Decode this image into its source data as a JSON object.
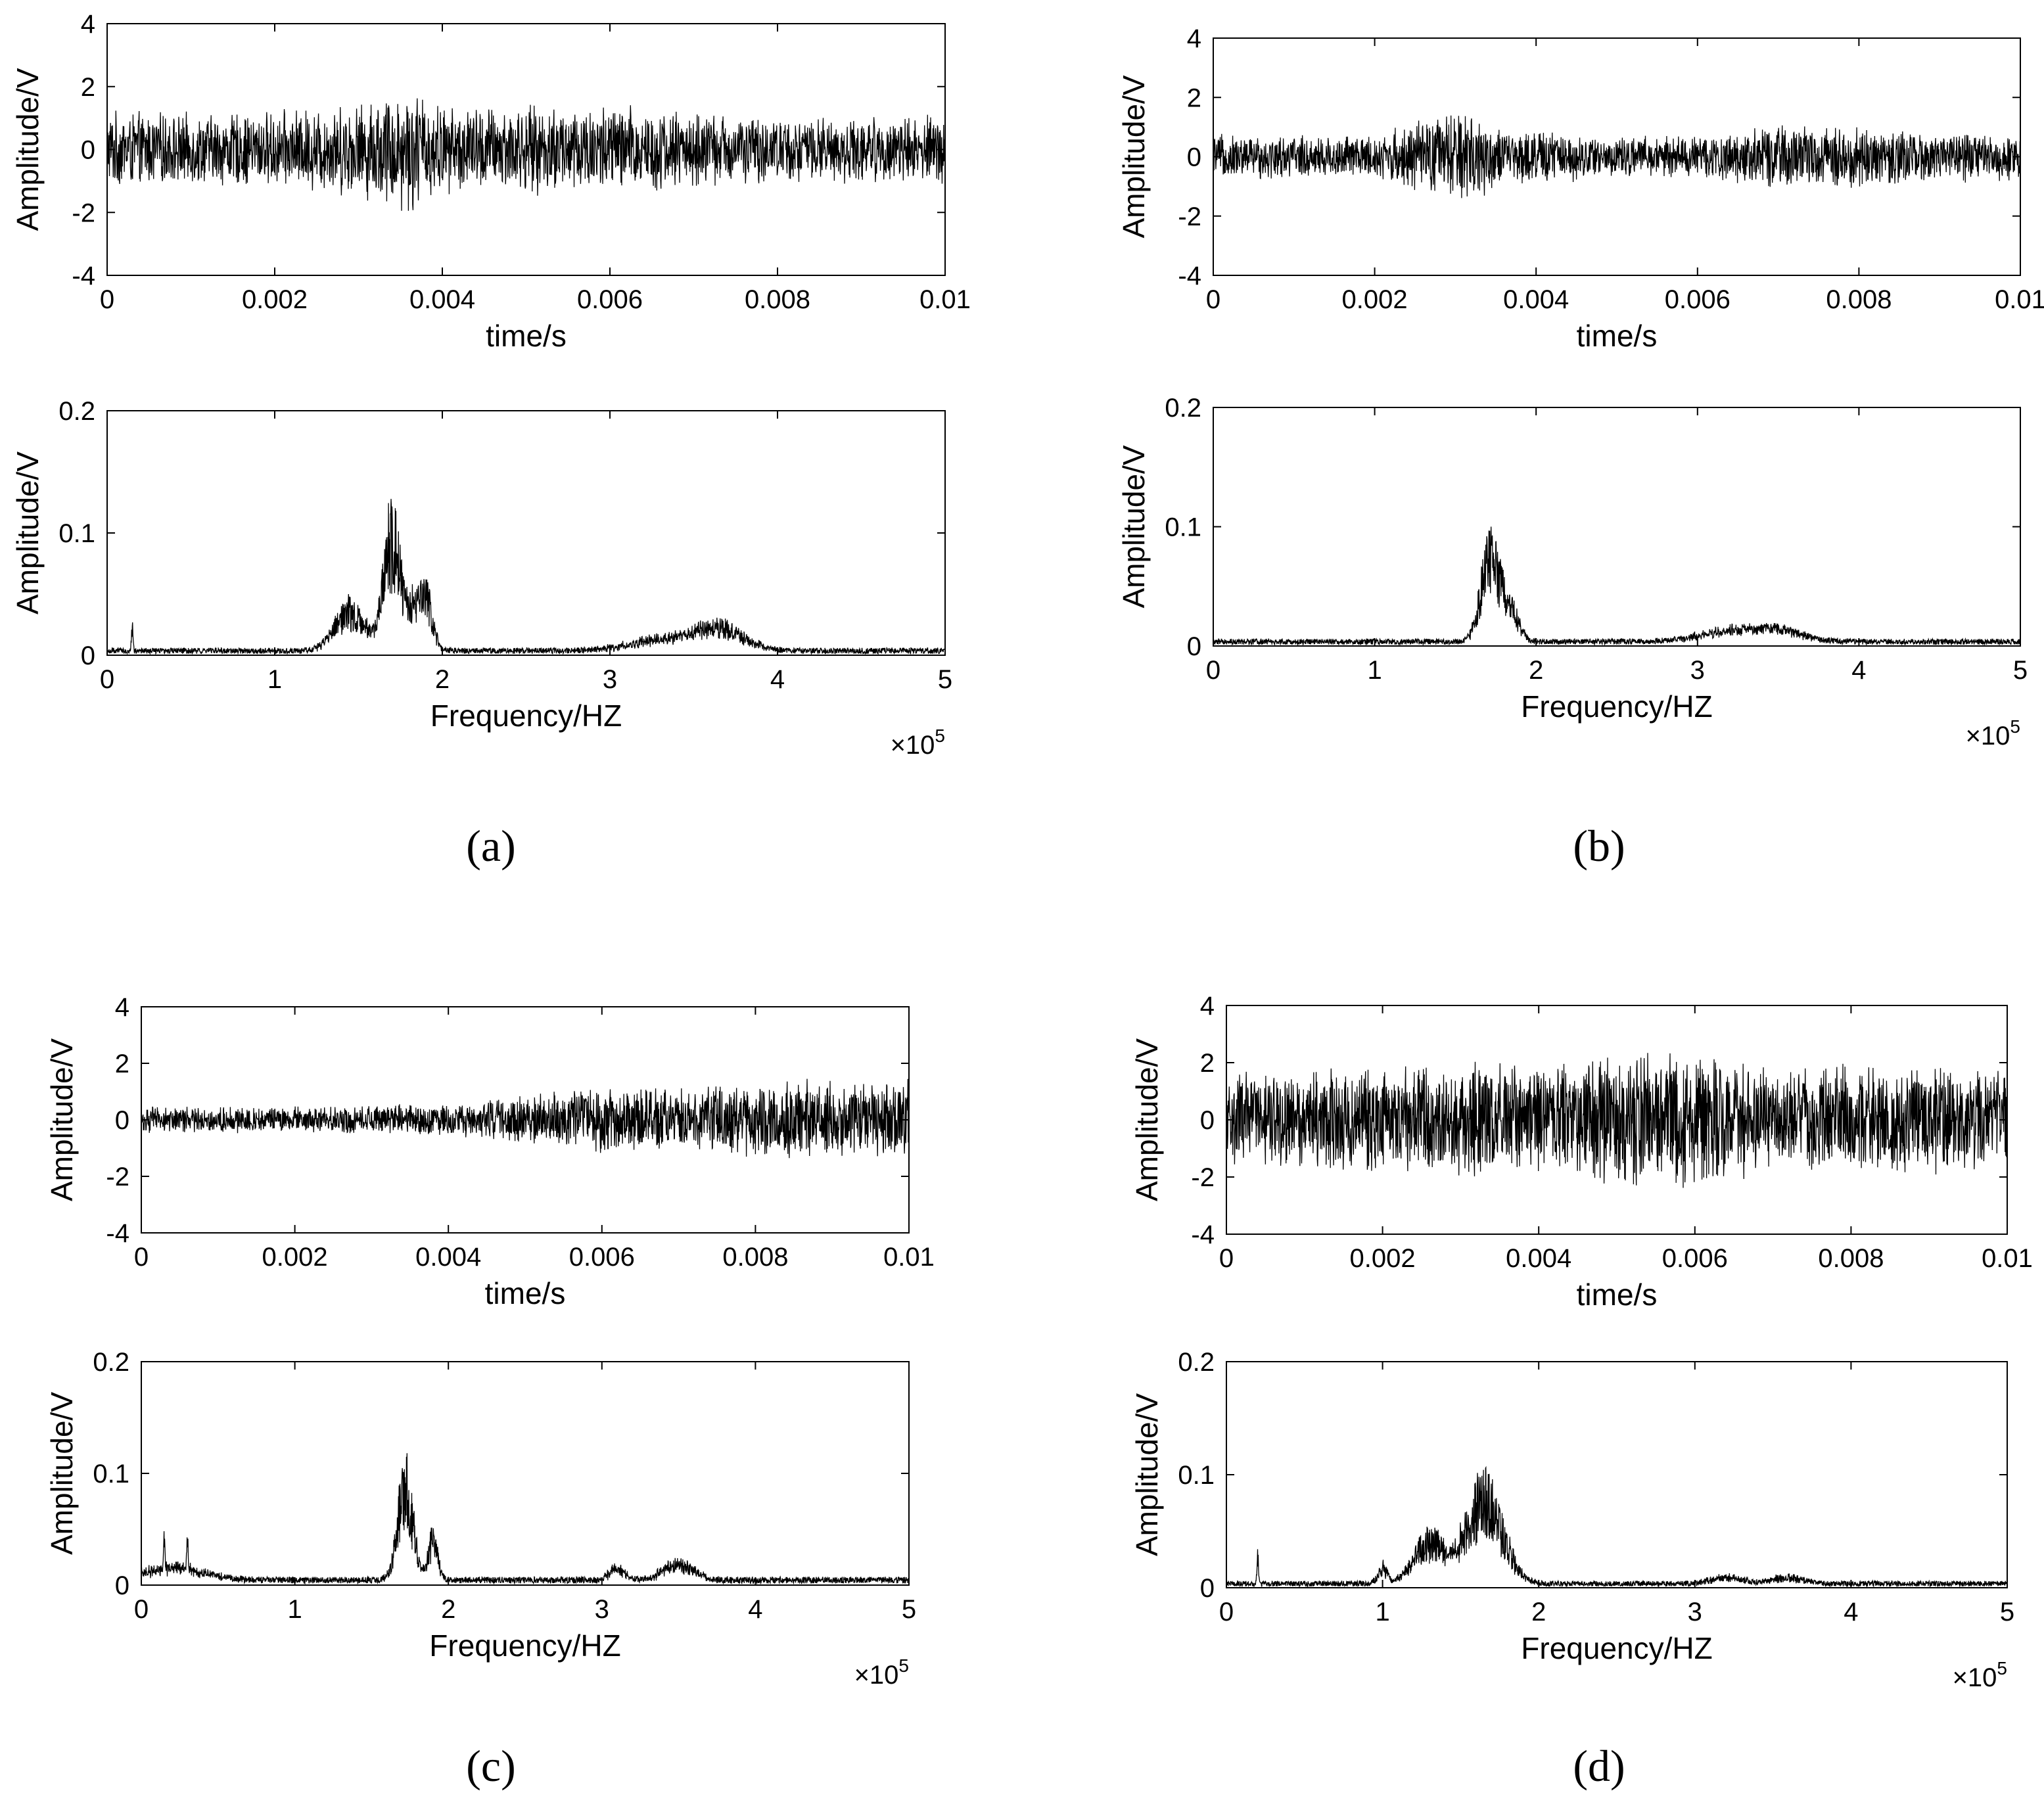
{
  "panel_labels": [
    "(a)",
    "(b)",
    "(c)",
    "(d)"
  ],
  "chart_data": [
    {
      "panel": "(a)",
      "type": "line",
      "series_kind": "time",
      "xlabel": "time/s",
      "ylabel": "Amplitude/V",
      "xlim": [
        0,
        0.01
      ],
      "ylim": [
        -4,
        4
      ],
      "xticks": [
        0,
        0.002,
        0.004,
        0.006,
        0.008,
        0.01
      ],
      "xtick_labels": [
        "0",
        "0.002",
        "0.004",
        "0.006",
        "0.008",
        "0.01"
      ],
      "yticks": [
        -4,
        -2,
        0,
        2,
        4
      ],
      "ytick_labels": [
        "-4",
        "-2",
        "0",
        "2",
        "4"
      ],
      "envelope": [
        [
          0,
          1.3
        ],
        [
          0.001,
          1.2
        ],
        [
          0.002,
          1.3
        ],
        [
          0.003,
          1.6
        ],
        [
          0.0036,
          2.2
        ],
        [
          0.004,
          1.5
        ],
        [
          0.005,
          1.5
        ],
        [
          0.006,
          1.6
        ],
        [
          0.007,
          1.3
        ],
        [
          0.008,
          1.1
        ],
        [
          0.009,
          1.1
        ],
        [
          0.01,
          1.2
        ]
      ],
      "grid": false,
      "color": "#000000"
    },
    {
      "panel": "(a)",
      "type": "line",
      "series_kind": "spectrum",
      "xlabel": "Frequency/HZ",
      "ylabel": "Amplitude/V",
      "xlim": [
        0,
        5
      ],
      "ylim": [
        0,
        0.2
      ],
      "xticks": [
        0,
        1,
        2,
        3,
        4,
        5
      ],
      "xtick_labels": [
        "0",
        "1",
        "2",
        "3",
        "4",
        "5"
      ],
      "yticks": [
        0,
        0.1,
        0.2
      ],
      "ytick_labels": [
        "0",
        "0.1",
        "0.2"
      ],
      "x_multiplier": "10",
      "x_multiplier_exp": "5",
      "baseline": 0.004,
      "peaks": [
        [
          0.15,
          0.025,
          0.005
        ],
        [
          1.45,
          0.045,
          0.09
        ],
        [
          1.7,
          0.135,
          0.05
        ],
        [
          1.82,
          0.04,
          0.04
        ],
        [
          1.9,
          0.06,
          0.04
        ],
        [
          3.65,
          0.025,
          0.15
        ],
        [
          3.3,
          0.012,
          0.2
        ]
      ],
      "grid": false,
      "color": "#000000"
    },
    {
      "panel": "(b)",
      "type": "line",
      "series_kind": "time",
      "xlabel": "time/s",
      "ylabel": "Amplitude/V",
      "xlim": [
        0,
        0.01
      ],
      "ylim": [
        -4,
        4
      ],
      "xticks": [
        0,
        0.002,
        0.004,
        0.006,
        0.008,
        0.01
      ],
      "xtick_labels": [
        "0",
        "0.002",
        "0.004",
        "0.006",
        "0.008",
        "0.01"
      ],
      "yticks": [
        -4,
        -2,
        0,
        2,
        4
      ],
      "ytick_labels": [
        "-4",
        "-2",
        "0",
        "2",
        "4"
      ],
      "envelope": [
        [
          0,
          0.8
        ],
        [
          0.002,
          0.8
        ],
        [
          0.0028,
          1.5
        ],
        [
          0.0032,
          1.8
        ],
        [
          0.0036,
          0.9
        ],
        [
          0.004,
          1.0
        ],
        [
          0.005,
          0.7
        ],
        [
          0.006,
          0.8
        ],
        [
          0.007,
          1.1
        ],
        [
          0.008,
          1.1
        ],
        [
          0.009,
          0.9
        ],
        [
          0.01,
          0.9
        ]
      ],
      "grid": false,
      "color": "#000000"
    },
    {
      "panel": "(b)",
      "type": "line",
      "series_kind": "spectrum",
      "xlabel": "Frequency/HZ",
      "ylabel": "Amplitude/V",
      "xlim": [
        0,
        5
      ],
      "ylim": [
        0,
        0.2
      ],
      "xticks": [
        0,
        1,
        2,
        3,
        4,
        5
      ],
      "xtick_labels": [
        "0",
        "1",
        "2",
        "3",
        "4",
        "5"
      ],
      "yticks": [
        0,
        0.1,
        0.2
      ],
      "ytick_labels": [
        "0",
        "0.1",
        "0.2"
      ],
      "x_multiplier": "10",
      "x_multiplier_exp": "5",
      "baseline": 0.004,
      "peaks": [
        [
          1.72,
          0.1,
          0.06
        ],
        [
          1.85,
          0.03,
          0.05
        ],
        [
          3.2,
          0.012,
          0.2
        ],
        [
          3.5,
          0.012,
          0.15
        ]
      ],
      "grid": false,
      "color": "#000000"
    },
    {
      "panel": "(c)",
      "type": "line",
      "series_kind": "time",
      "xlabel": "time/s",
      "ylabel": "Amplitude/V",
      "xlim": [
        0,
        0.01
      ],
      "ylim": [
        -4,
        4
      ],
      "xticks": [
        0,
        0.002,
        0.004,
        0.006,
        0.008,
        0.01
      ],
      "xtick_labels": [
        "0",
        "0.002",
        "0.004",
        "0.006",
        "0.008",
        "0.01"
      ],
      "yticks": [
        -4,
        -2,
        0,
        2,
        4
      ],
      "ytick_labels": [
        "-4",
        "-2",
        "0",
        "2",
        "4"
      ],
      "envelope": [
        [
          0,
          0.5
        ],
        [
          0.002,
          0.5
        ],
        [
          0.004,
          0.6
        ],
        [
          0.005,
          0.9
        ],
        [
          0.006,
          1.3
        ],
        [
          0.007,
          1.2
        ],
        [
          0.008,
          1.4
        ],
        [
          0.009,
          1.5
        ],
        [
          0.01,
          1.5
        ]
      ],
      "grid": false,
      "color": "#000000"
    },
    {
      "panel": "(c)",
      "type": "line",
      "series_kind": "spectrum",
      "xlabel": "Frequency/HZ",
      "ylabel": "Amplitude/V",
      "xlim": [
        0,
        5
      ],
      "ylim": [
        0,
        0.2
      ],
      "xticks": [
        0,
        1,
        2,
        3,
        4,
        5
      ],
      "xtick_labels": [
        "0",
        "1",
        "2",
        "3",
        "4",
        "5"
      ],
      "yticks": [
        0,
        0.1,
        0.2
      ],
      "ytick_labels": [
        "0",
        "0.1",
        "0.2"
      ],
      "x_multiplier": "10",
      "x_multiplier_exp": "5",
      "baseline": 0.005,
      "peaks": [
        [
          0.15,
          0.04,
          0.005
        ],
        [
          0.3,
          0.035,
          0.005
        ],
        [
          0.2,
          0.015,
          0.2
        ],
        [
          1.72,
          0.12,
          0.05
        ],
        [
          1.9,
          0.05,
          0.03
        ],
        [
          3.1,
          0.015,
          0.05
        ],
        [
          3.5,
          0.02,
          0.1
        ]
      ],
      "grid": false,
      "color": "#000000"
    },
    {
      "panel": "(d)",
      "type": "line",
      "series_kind": "time",
      "xlabel": "time/s",
      "ylabel": "Amplitude/V",
      "xlim": [
        0,
        0.01
      ],
      "ylim": [
        -4,
        4
      ],
      "xticks": [
        0,
        0.002,
        0.004,
        0.006,
        0.008,
        0.01
      ],
      "xtick_labels": [
        "0",
        "0.002",
        "0.004",
        "0.006",
        "0.008",
        "0.01"
      ],
      "yticks": [
        -4,
        -2,
        0,
        2,
        4
      ],
      "ytick_labels": [
        "-4",
        "-2",
        "0",
        "2",
        "4"
      ],
      "envelope": [
        [
          0,
          1.8
        ],
        [
          0.002,
          1.9
        ],
        [
          0.003,
          2.1
        ],
        [
          0.004,
          2.0
        ],
        [
          0.0058,
          2.8
        ],
        [
          0.007,
          1.9
        ],
        [
          0.008,
          2.0
        ],
        [
          0.01,
          2.0
        ]
      ],
      "grid": false,
      "color": "#000000"
    },
    {
      "panel": "(d)",
      "type": "line",
      "series_kind": "spectrum",
      "xlabel": "Frequency/HZ",
      "ylabel": "Amplitude/V",
      "xlim": [
        0,
        5
      ],
      "ylim": [
        0,
        0.2
      ],
      "xticks": [
        0,
        1,
        2,
        3,
        4,
        5
      ],
      "xtick_labels": [
        "0",
        "1",
        "2",
        "3",
        "4",
        "5"
      ],
      "yticks": [
        0,
        0.1,
        0.2
      ],
      "ytick_labels": [
        "0",
        "0.1",
        "0.2"
      ],
      "x_multiplier": "10",
      "x_multiplier_exp": "5",
      "baseline": 0.004,
      "peaks": [
        [
          0.2,
          0.04,
          0.005
        ],
        [
          1.0,
          0.02,
          0.03
        ],
        [
          1.3,
          0.05,
          0.1
        ],
        [
          1.65,
          0.105,
          0.12
        ],
        [
          3.2,
          0.008,
          0.1
        ],
        [
          3.6,
          0.008,
          0.1
        ]
      ],
      "grid": false,
      "color": "#000000"
    }
  ]
}
